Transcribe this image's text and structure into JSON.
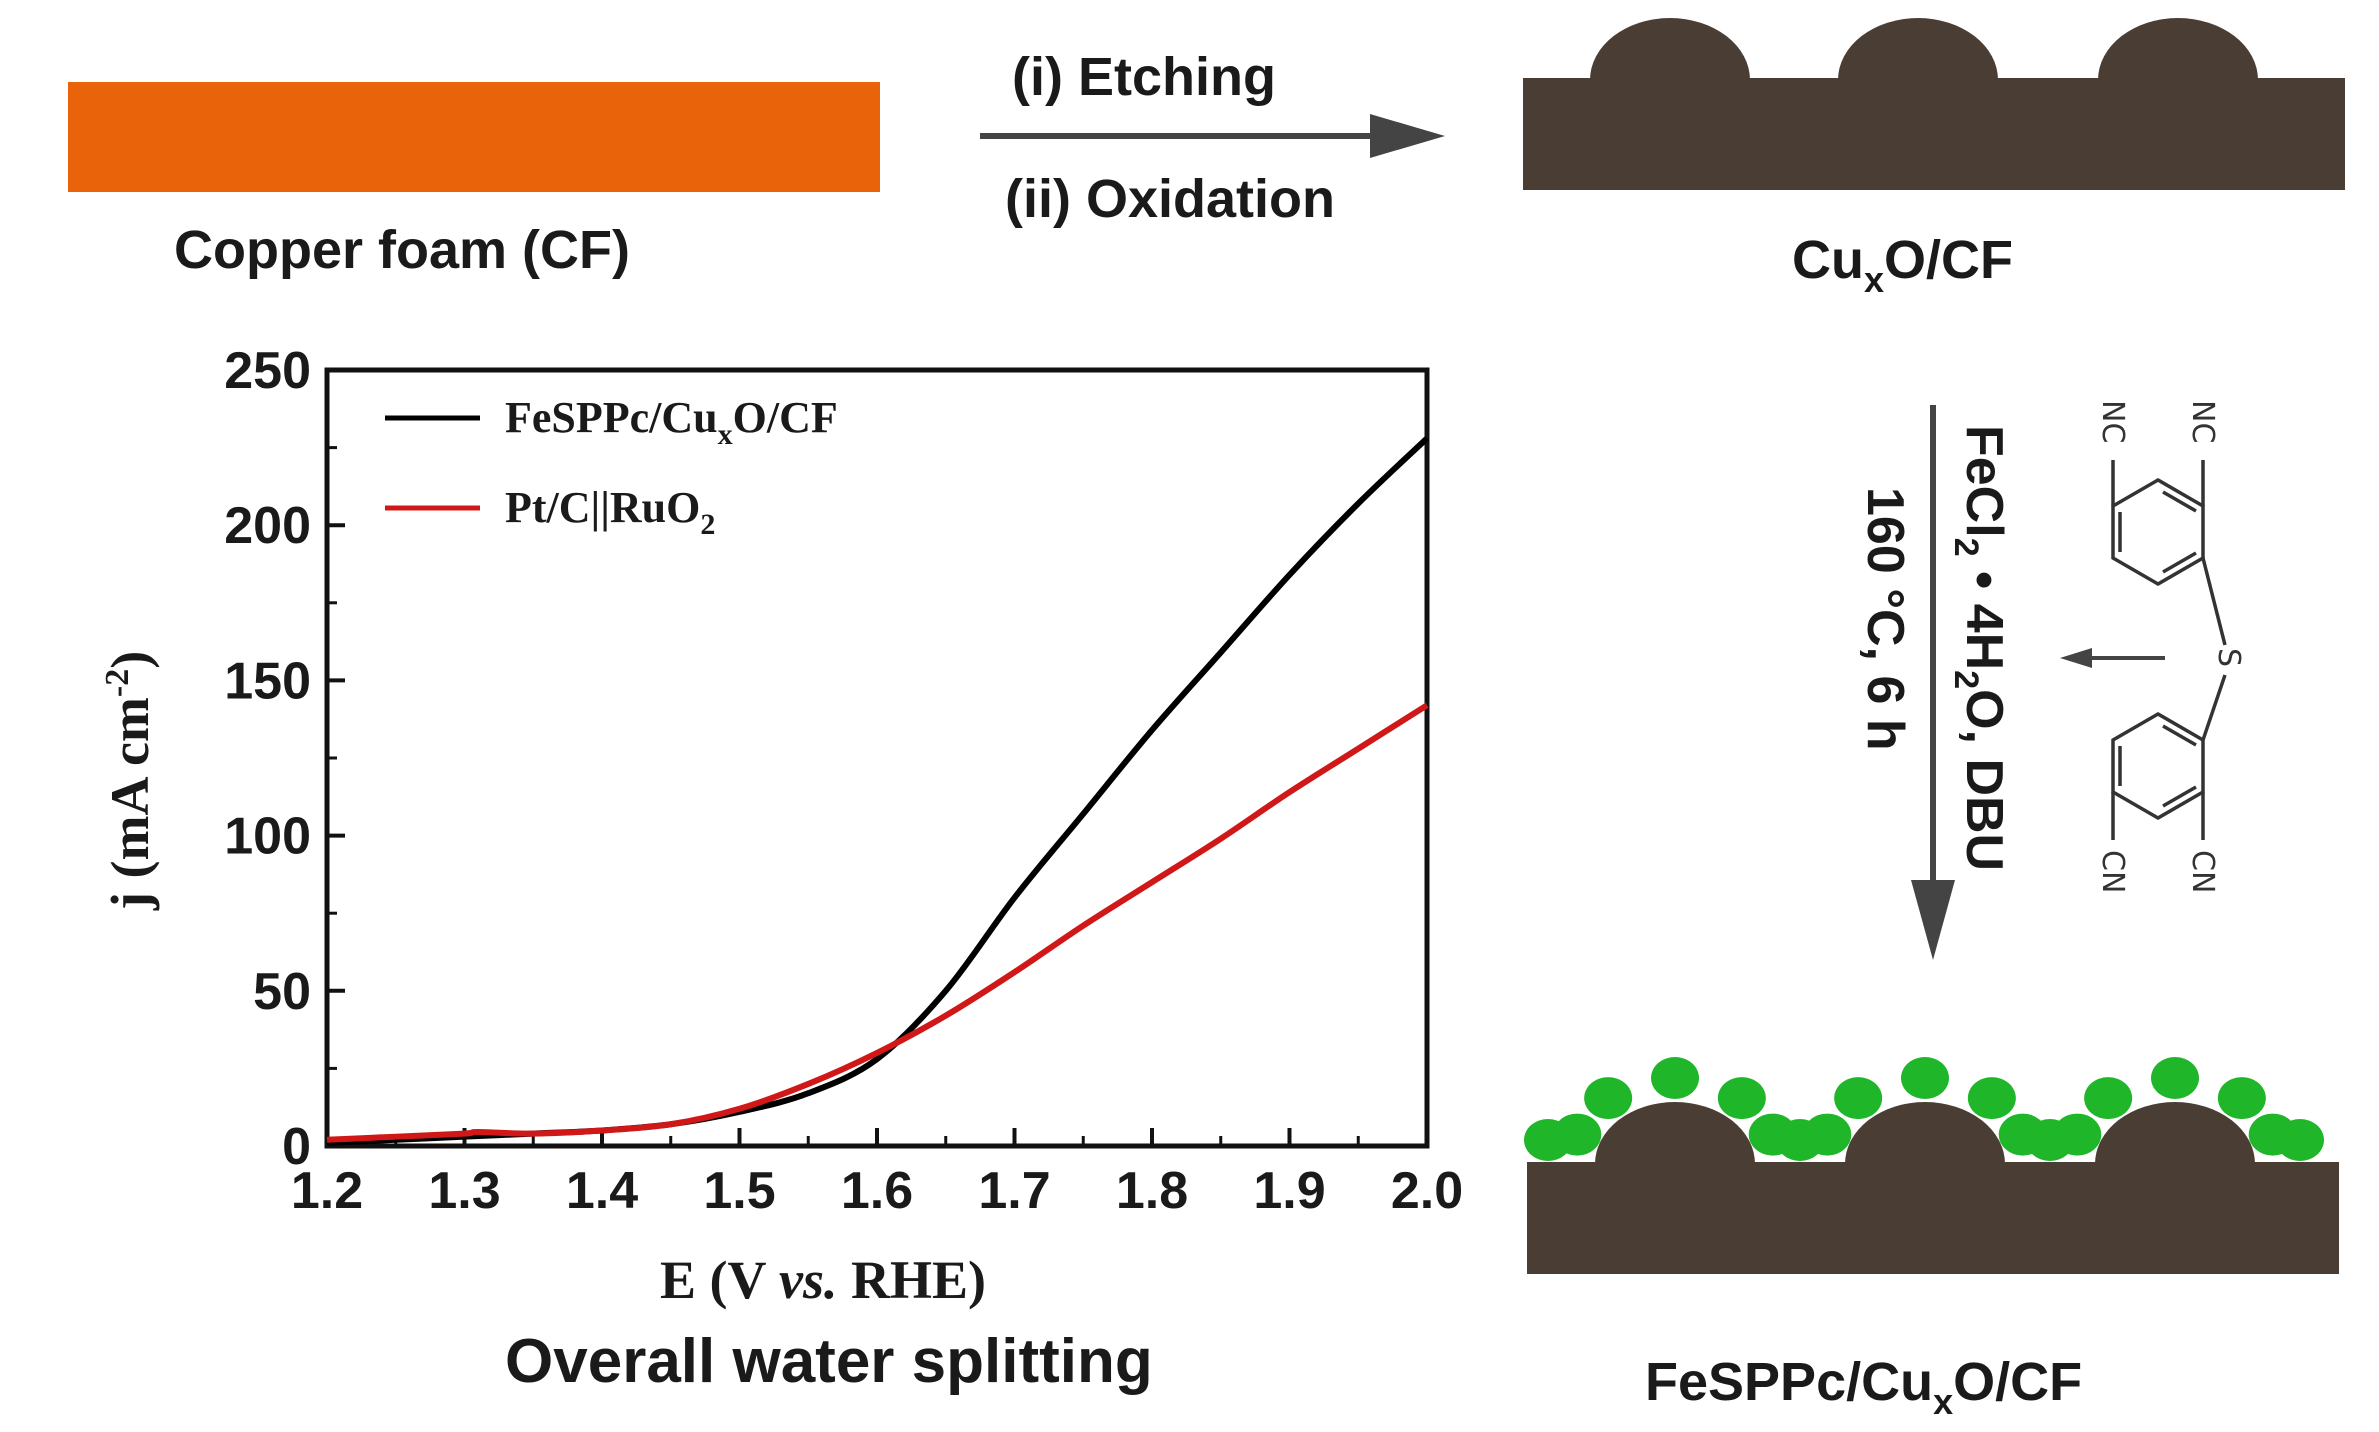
{
  "colors": {
    "copper": "#e8630a",
    "cuxo": "#4a3d33",
    "fesppc_particles": "#1fb62a",
    "curve_fesppc": "#000000",
    "curve_ptc": "#d01818",
    "arrow": "#444444"
  },
  "step1": {
    "copper_label": "Copper foam (CF)",
    "etching_label": "(i) Etching",
    "oxidation_label": "(ii) Oxidation",
    "cuxo_label_main": "Cu",
    "cuxo_label_sub": "x",
    "cuxo_label_end": "O/CF"
  },
  "step2": {
    "reagent_line1_a": "FeCl",
    "reagent_line1_sub1": "2",
    "reagent_line1_b": " • 4H",
    "reagent_line1_sub2": "2",
    "reagent_line1_c": "O, DBU",
    "reagent_line2": "160 °C, 6 h",
    "molecule": {
      "nc_top_left": "NC",
      "nc_top_right": "NC",
      "s_atom": "S",
      "cn_bottom_left": "CN",
      "cn_bottom_right": "CN"
    }
  },
  "product": {
    "label_main": "FeSPPc/Cu",
    "label_sub": "x",
    "label_end": "O/CF"
  },
  "chart_caption": "Overall water splitting",
  "chart_data": {
    "type": "line",
    "xlabel_a": "E (V ",
    "xlabel_b": "vs.",
    "xlabel_c": " RHE)",
    "ylabel_a": "j (mA cm",
    "ylabel_sup": "-2",
    "ylabel_c": ")",
    "xlim": [
      1.2,
      2.0
    ],
    "ylim": [
      0,
      250
    ],
    "xticks": [
      "1.2",
      "1.3",
      "1.4",
      "1.5",
      "1.6",
      "1.7",
      "1.8",
      "1.9",
      "2.0"
    ],
    "yticks": [
      "0",
      "50",
      "100",
      "150",
      "200",
      "250"
    ],
    "legend": "top-left",
    "series": [
      {
        "name_a": "FeSPPc/Cu",
        "name_sub": "x",
        "name_c": "O/CF",
        "color": "#000000",
        "x": [
          1.2,
          1.25,
          1.3,
          1.35,
          1.4,
          1.45,
          1.5,
          1.55,
          1.6,
          1.65,
          1.7,
          1.75,
          1.8,
          1.85,
          1.9,
          1.95,
          2.0
        ],
        "y": [
          1,
          2,
          3,
          4,
          5,
          7,
          11,
          17,
          28,
          50,
          80,
          107,
          134,
          159,
          184,
          207,
          228
        ]
      },
      {
        "name_a": "Pt/C||RuO",
        "name_sub": "2",
        "name_c": "",
        "color": "#d01818",
        "x": [
          1.2,
          1.25,
          1.3,
          1.31,
          1.35,
          1.4,
          1.45,
          1.5,
          1.55,
          1.6,
          1.65,
          1.7,
          1.75,
          1.8,
          1.85,
          1.9,
          1.95,
          2.0
        ],
        "y": [
          2,
          3,
          4,
          4.5,
          4,
          5,
          7,
          12,
          20,
          30,
          42,
          56,
          71,
          85,
          99,
          114,
          128,
          142
        ]
      }
    ]
  }
}
